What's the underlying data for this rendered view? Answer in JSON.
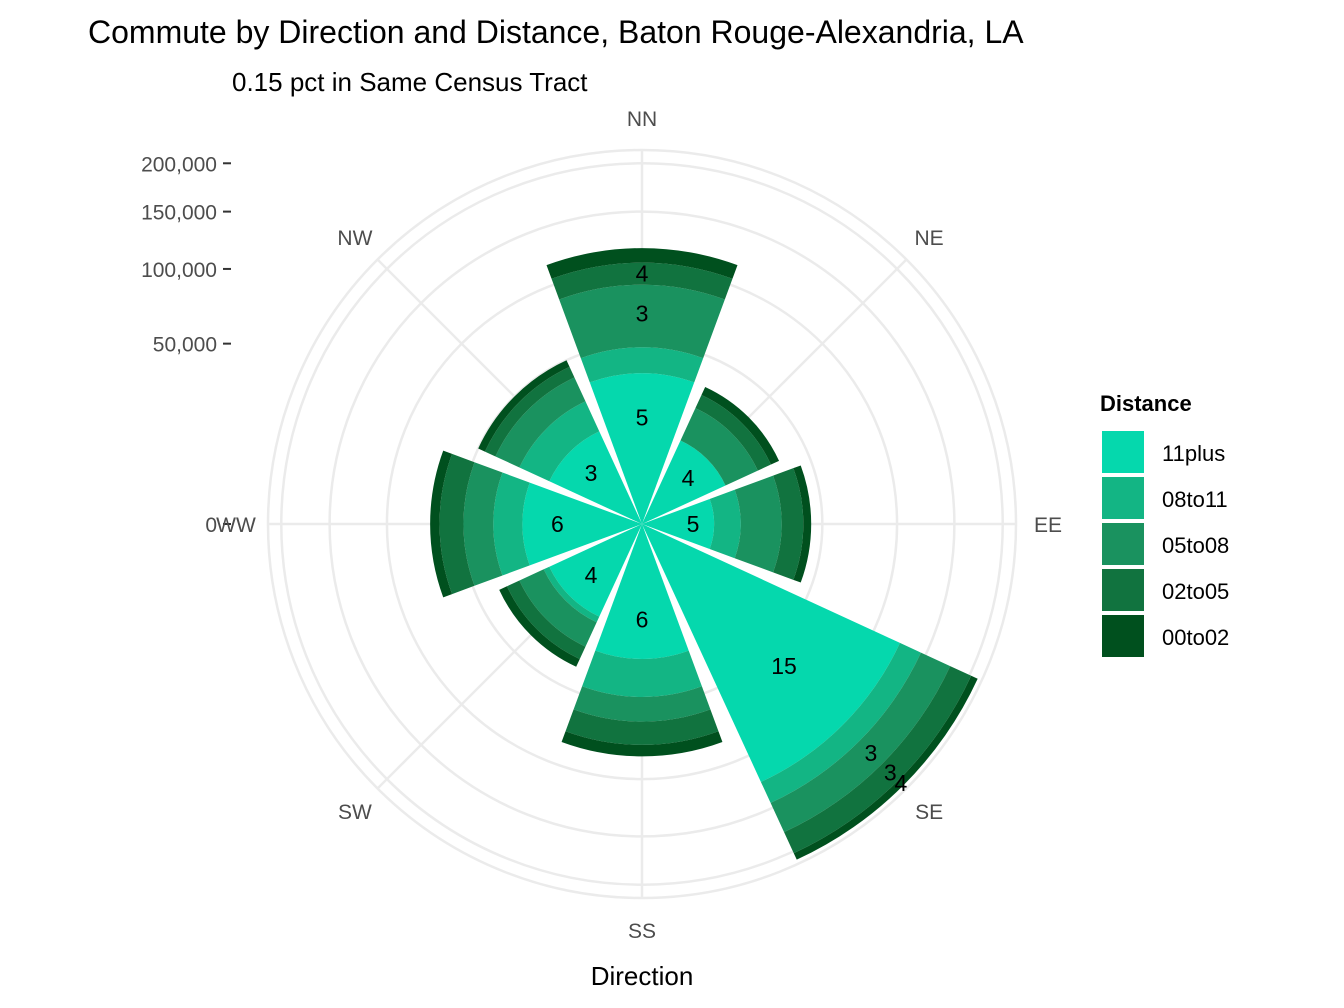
{
  "chart_data": {
    "type": "bar",
    "coordinate_system": "polar",
    "title": "Commute by Direction and Distance, Baton Rouge-Alexandria, LA",
    "subtitle": "0.15 pct in Same Census Tract",
    "xlabel": "Direction",
    "ylabel": "",
    "categories": [
      "NN",
      "NE",
      "EE",
      "SE",
      "SS",
      "SW",
      "WW",
      "NW"
    ],
    "y_ticks": [
      0,
      50000,
      100000,
      150000,
      200000
    ],
    "y_tick_labels": [
      "0",
      "50,000",
      "100,000",
      "150,000",
      "200,000"
    ],
    "ylim": [
      0,
      215000
    ],
    "grid": true,
    "legend": {
      "title": "Distance",
      "position": "right"
    },
    "series": [
      {
        "name": "00to02",
        "color": "#00501e",
        "values": [
          12000,
          4000,
          4000,
          8000,
          8000,
          4000,
          6000,
          4000
        ]
      },
      {
        "name": "02to05",
        "color": "#11733f",
        "values": [
          17000,
          6000,
          10000,
          25000,
          15000,
          6000,
          14000,
          6000
        ]
      },
      {
        "name": "05to08",
        "color": "#1a925f",
        "values": [
          40000,
          12000,
          15000,
          32000,
          14000,
          10000,
          15000,
          12000
        ]
      },
      {
        "name": "08to11",
        "color": "#13b584",
        "values": [
          13000,
          0,
          7000,
          21000,
          18000,
          2000,
          12000,
          12000
        ]
      },
      {
        "name": "11plus",
        "color": "#05d8ad",
        "values": [
          35000,
          13000,
          8000,
          124000,
          28000,
          16000,
          22000,
          16000
        ]
      }
    ],
    "bar_labels": [
      {
        "category": "NN",
        "series": "11plus",
        "text": "5"
      },
      {
        "category": "NN",
        "series": "05to08",
        "text": "3"
      },
      {
        "category": "NN",
        "series": "02to05",
        "text": "4"
      },
      {
        "category": "NE",
        "series": "11plus",
        "text": "4"
      },
      {
        "category": "EE",
        "series": "11plus",
        "text": "5"
      },
      {
        "category": "SE",
        "series": "11plus",
        "text": "15"
      },
      {
        "category": "SE",
        "series": "05to08",
        "text": "3"
      },
      {
        "category": "SE",
        "series": "02to05",
        "text": "3"
      },
      {
        "category": "SE",
        "series": "00to02",
        "text": "4"
      },
      {
        "category": "SS",
        "series": "11plus",
        "text": "6"
      },
      {
        "category": "SW",
        "series": "11plus",
        "text": "4"
      },
      {
        "category": "WW",
        "series": "11plus",
        "text": "6"
      },
      {
        "category": "NW",
        "series": "11plus",
        "text": "3"
      }
    ]
  }
}
